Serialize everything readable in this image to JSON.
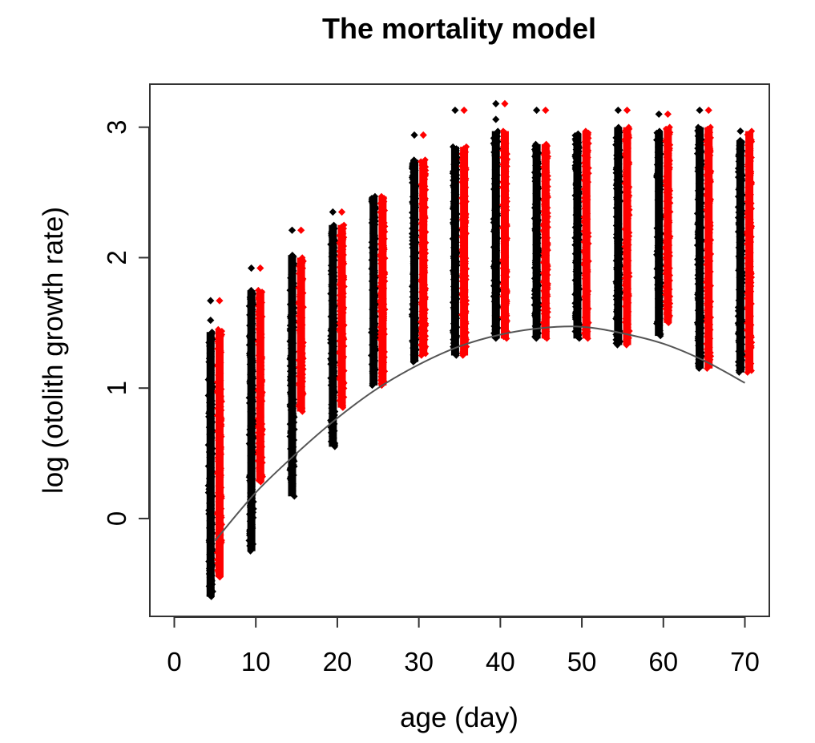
{
  "chart_data": {
    "type": "scatter",
    "title": "The mortality model",
    "xlabel": "age (day)",
    "ylabel": "log (otolith growth rate)",
    "xlim": [
      -3,
      73
    ],
    "ylim": [
      -0.75,
      3.33
    ],
    "x_ticks": [
      "0",
      "10",
      "20",
      "30",
      "40",
      "50",
      "60",
      "70"
    ],
    "y_ticks": [
      "0",
      "1",
      "2",
      "3"
    ],
    "grid": false,
    "legend": "none",
    "point_offset_days": 0.55,
    "series": [
      {
        "color": "#000000",
        "ranges": [
          {
            "x": 5,
            "ymin": -0.6,
            "ymax": 1.43,
            "outliers": [
              1.52,
              1.67
            ]
          },
          {
            "x": 10,
            "ymin": -0.25,
            "ymax": 1.75,
            "outliers": [
              1.92
            ]
          },
          {
            "x": 15,
            "ymin": 0.17,
            "ymax": 2.02,
            "outliers": [
              2.21
            ]
          },
          {
            "x": 20,
            "ymin": 0.55,
            "ymax": 2.25,
            "outliers": [
              2.35
            ]
          },
          {
            "x": 25,
            "ymin": 1.02,
            "ymax": 2.47,
            "outliers": []
          },
          {
            "x": 30,
            "ymin": 1.2,
            "ymax": 2.75,
            "outliers": [
              2.94
            ]
          },
          {
            "x": 35,
            "ymin": 1.25,
            "ymax": 2.85,
            "outliers": [
              3.13
            ]
          },
          {
            "x": 40,
            "ymin": 1.38,
            "ymax": 2.97,
            "outliers": [
              3.06,
              3.18
            ]
          },
          {
            "x": 45,
            "ymin": 1.38,
            "ymax": 2.87,
            "outliers": [
              3.13
            ]
          },
          {
            "x": 50,
            "ymin": 1.38,
            "ymax": 2.95,
            "outliers": []
          },
          {
            "x": 55,
            "ymin": 1.33,
            "ymax": 3.0,
            "outliers": [
              3.13
            ]
          },
          {
            "x": 60,
            "ymin": 1.4,
            "ymax": 2.97,
            "outliers": [
              3.1
            ]
          },
          {
            "x": 65,
            "ymin": 1.15,
            "ymax": 3.0,
            "outliers": [
              3.13
            ]
          },
          {
            "x": 70,
            "ymin": 1.12,
            "ymax": 2.9,
            "outliers": [
              2.97
            ]
          }
        ]
      },
      {
        "color": "#ff0000",
        "ranges": [
          {
            "x": 5,
            "ymin": -0.45,
            "ymax": 1.45,
            "outliers": [
              1.67
            ]
          },
          {
            "x": 10,
            "ymin": 0.28,
            "ymax": 1.75,
            "outliers": [
              1.92
            ]
          },
          {
            "x": 15,
            "ymin": 0.82,
            "ymax": 2.0,
            "outliers": [
              2.21
            ]
          },
          {
            "x": 20,
            "ymin": 0.85,
            "ymax": 2.25,
            "outliers": [
              2.35
            ]
          },
          {
            "x": 25,
            "ymin": 1.02,
            "ymax": 2.47,
            "outliers": []
          },
          {
            "x": 30,
            "ymin": 1.25,
            "ymax": 2.75,
            "outliers": [
              2.94
            ]
          },
          {
            "x": 35,
            "ymin": 1.25,
            "ymax": 2.85,
            "outliers": [
              3.13
            ]
          },
          {
            "x": 40,
            "ymin": 1.38,
            "ymax": 2.97,
            "outliers": [
              3.18
            ]
          },
          {
            "x": 45,
            "ymin": 1.38,
            "ymax": 2.87,
            "outliers": [
              3.13
            ]
          },
          {
            "x": 50,
            "ymin": 1.38,
            "ymax": 2.97,
            "outliers": []
          },
          {
            "x": 55,
            "ymin": 1.33,
            "ymax": 3.0,
            "outliers": [
              3.13
            ]
          },
          {
            "x": 60,
            "ymin": 1.5,
            "ymax": 3.0,
            "outliers": [
              3.1
            ]
          },
          {
            "x": 65,
            "ymin": 1.15,
            "ymax": 3.0,
            "outliers": [
              3.13
            ]
          },
          {
            "x": 70,
            "ymin": 1.12,
            "ymax": 2.97,
            "outliers": []
          }
        ]
      }
    ],
    "curve": {
      "color": "#555555",
      "x": [
        5,
        10,
        15,
        20,
        25,
        30,
        35,
        40,
        45,
        50,
        55,
        60,
        65,
        70
      ],
      "y": [
        -0.17,
        0.2,
        0.5,
        0.77,
        1.0,
        1.18,
        1.32,
        1.41,
        1.46,
        1.47,
        1.42,
        1.34,
        1.21,
        1.04
      ]
    }
  }
}
